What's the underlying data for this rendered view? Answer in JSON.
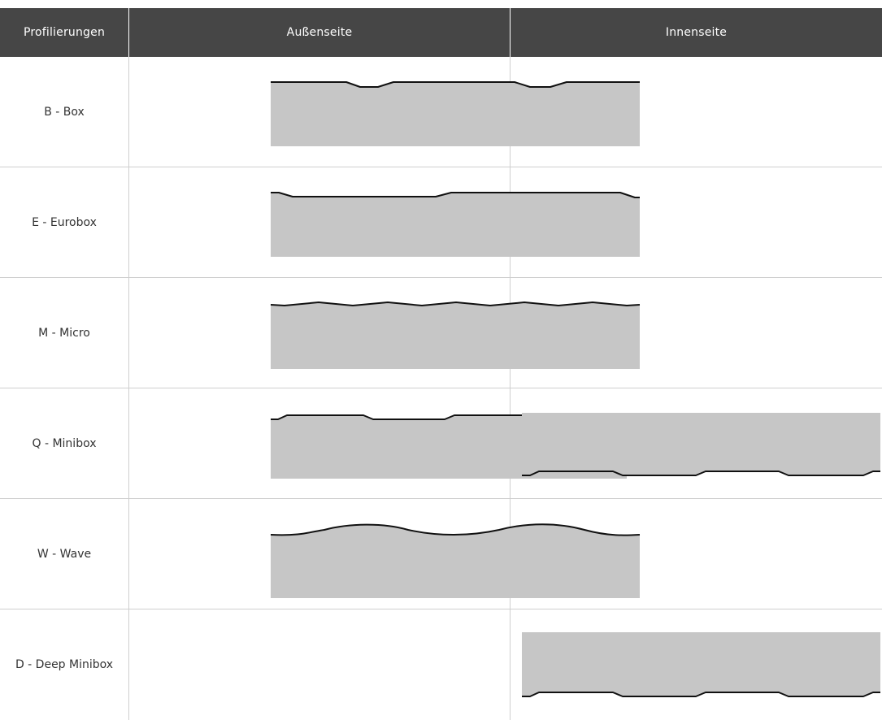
{
  "header": {
    "col1": "Profilierungen",
    "col2": "Außenseite",
    "col3": "Innenseite"
  },
  "rows": [
    {
      "label": "B - Box",
      "aussen_profile": "box",
      "innen_profile": ""
    },
    {
      "label": "E - Eurobox",
      "aussen_profile": "eurobox",
      "innen_profile": ""
    },
    {
      "label": "M - Micro",
      "aussen_profile": "micro",
      "innen_profile": ""
    },
    {
      "label": "Q - Minibox",
      "aussen_profile": "minibox",
      "innen_profile": "minibox"
    },
    {
      "label": "W - Wave",
      "aussen_profile": "wave",
      "innen_profile": ""
    },
    {
      "label": "D - Deep Minibox",
      "aussen_profile": "",
      "innen_profile": "deep-minibox"
    }
  ],
  "colors": {
    "header_bg": "#464646",
    "header_text": "#ffffff",
    "profile_fill": "#c6c6c6",
    "profile_edge": "#111111",
    "grid_line": "#cfcfcf"
  }
}
